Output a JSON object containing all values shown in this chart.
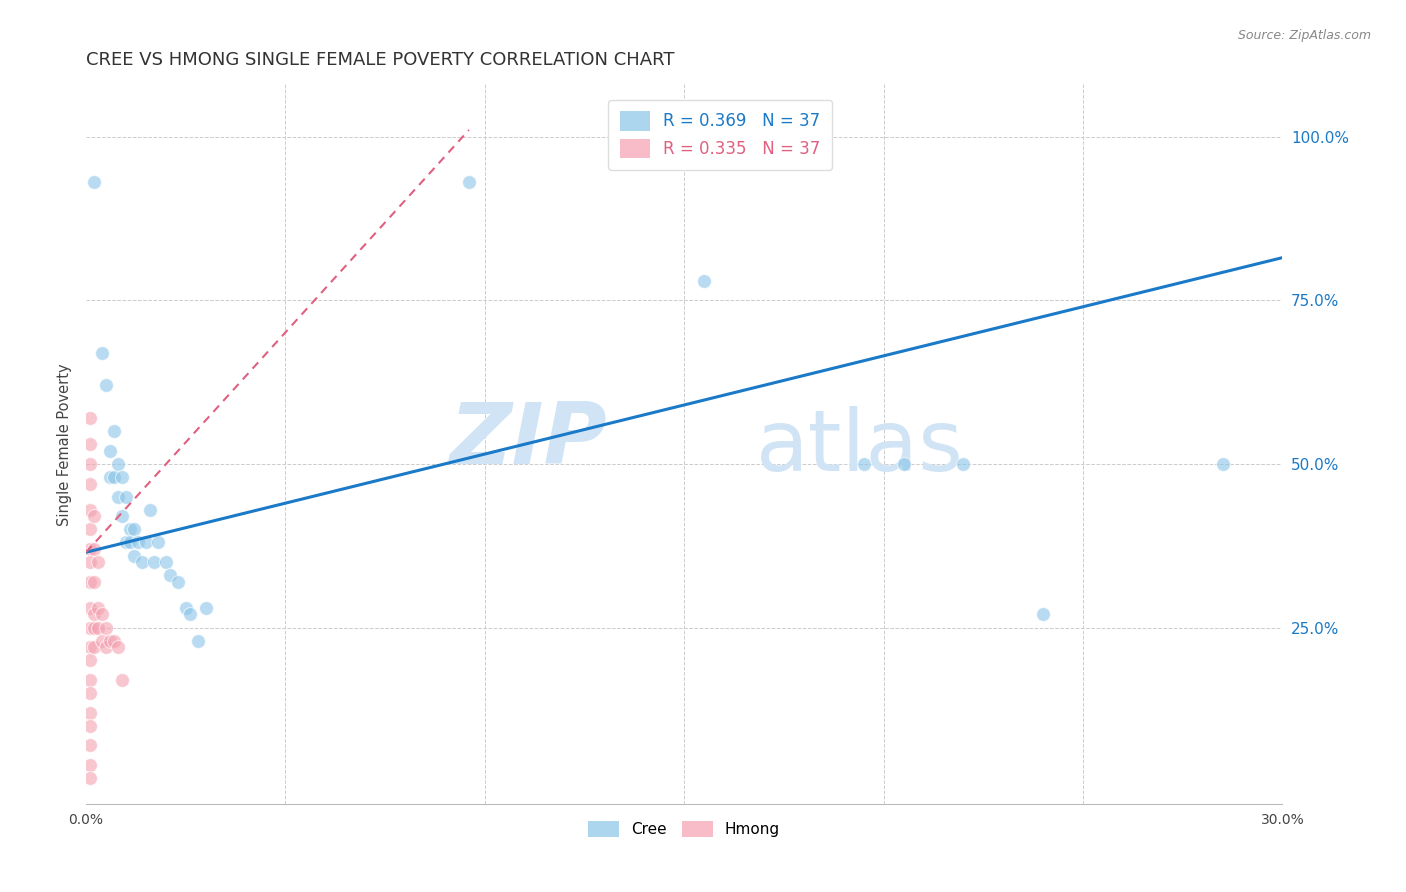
{
  "title": "CREE VS HMONG SINGLE FEMALE POVERTY CORRELATION CHART",
  "source": "Source: ZipAtlas.com",
  "ylabel": "Single Female Poverty",
  "xlim": [
    0.0,
    0.3
  ],
  "ylim": [
    -0.02,
    1.08
  ],
  "xticks": [
    0.0,
    0.05,
    0.1,
    0.15,
    0.2,
    0.25,
    0.3
  ],
  "yticks_right": [
    0.25,
    0.5,
    0.75,
    1.0
  ],
  "background_color": "#ffffff",
  "grid_color": "#cccccc",
  "cree_color": "#89c4e8",
  "hmong_color": "#f4a0b0",
  "cree_R": 0.369,
  "cree_N": 37,
  "hmong_R": 0.335,
  "hmong_N": 37,
  "watermark_zip": "ZIP",
  "watermark_atlas": "atlas",
  "watermark_color": "#d0e4f5",
  "cree_scatter": [
    [
      0.002,
      0.93
    ],
    [
      0.004,
      0.67
    ],
    [
      0.005,
      0.62
    ],
    [
      0.006,
      0.52
    ],
    [
      0.006,
      0.48
    ],
    [
      0.007,
      0.55
    ],
    [
      0.007,
      0.48
    ],
    [
      0.008,
      0.5
    ],
    [
      0.008,
      0.45
    ],
    [
      0.009,
      0.48
    ],
    [
      0.009,
      0.42
    ],
    [
      0.01,
      0.45
    ],
    [
      0.01,
      0.38
    ],
    [
      0.011,
      0.4
    ],
    [
      0.011,
      0.38
    ],
    [
      0.012,
      0.4
    ],
    [
      0.012,
      0.36
    ],
    [
      0.013,
      0.38
    ],
    [
      0.014,
      0.35
    ],
    [
      0.015,
      0.38
    ],
    [
      0.016,
      0.43
    ],
    [
      0.017,
      0.35
    ],
    [
      0.018,
      0.38
    ],
    [
      0.02,
      0.35
    ],
    [
      0.021,
      0.33
    ],
    [
      0.023,
      0.32
    ],
    [
      0.025,
      0.28
    ],
    [
      0.026,
      0.27
    ],
    [
      0.028,
      0.23
    ],
    [
      0.03,
      0.28
    ],
    [
      0.096,
      0.93
    ],
    [
      0.155,
      0.78
    ],
    [
      0.195,
      0.5
    ],
    [
      0.205,
      0.5
    ],
    [
      0.22,
      0.5
    ],
    [
      0.24,
      0.27
    ],
    [
      0.285,
      0.5
    ]
  ],
  "hmong_scatter": [
    [
      0.001,
      0.57
    ],
    [
      0.001,
      0.53
    ],
    [
      0.001,
      0.5
    ],
    [
      0.001,
      0.47
    ],
    [
      0.001,
      0.43
    ],
    [
      0.001,
      0.4
    ],
    [
      0.001,
      0.37
    ],
    [
      0.001,
      0.35
    ],
    [
      0.001,
      0.32
    ],
    [
      0.001,
      0.28
    ],
    [
      0.001,
      0.25
    ],
    [
      0.001,
      0.22
    ],
    [
      0.001,
      0.2
    ],
    [
      0.001,
      0.17
    ],
    [
      0.001,
      0.15
    ],
    [
      0.001,
      0.12
    ],
    [
      0.001,
      0.1
    ],
    [
      0.001,
      0.07
    ],
    [
      0.001,
      0.04
    ],
    [
      0.001,
      0.02
    ],
    [
      0.002,
      0.42
    ],
    [
      0.002,
      0.37
    ],
    [
      0.002,
      0.32
    ],
    [
      0.002,
      0.27
    ],
    [
      0.002,
      0.25
    ],
    [
      0.002,
      0.22
    ],
    [
      0.003,
      0.35
    ],
    [
      0.003,
      0.28
    ],
    [
      0.003,
      0.25
    ],
    [
      0.004,
      0.27
    ],
    [
      0.004,
      0.23
    ],
    [
      0.005,
      0.25
    ],
    [
      0.005,
      0.22
    ],
    [
      0.006,
      0.23
    ],
    [
      0.007,
      0.23
    ],
    [
      0.008,
      0.22
    ],
    [
      0.009,
      0.17
    ]
  ],
  "cree_line": [
    [
      0.0,
      0.365
    ],
    [
      0.3,
      0.815
    ]
  ],
  "hmong_line": [
    [
      0.0,
      0.365
    ],
    [
      0.096,
      1.01
    ]
  ],
  "cree_line_color": "#1a7ac8",
  "hmong_line_color": "#e06080",
  "title_fontsize": 13,
  "axis_label_fontsize": 10.5,
  "tick_fontsize": 10,
  "legend_fontsize": 12
}
